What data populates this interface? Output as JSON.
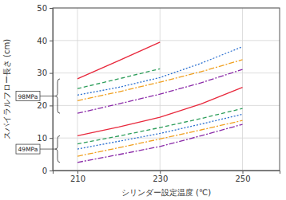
{
  "chart_data": {
    "type": "line",
    "x_label": "シリンダー設定温度 (℃)",
    "y_label": "スパイラルフロー長さ (cm)",
    "x": [
      210,
      220,
      230,
      240,
      250
    ],
    "xlim": [
      204,
      259
    ],
    "xticks": [
      210,
      230,
      250
    ],
    "ylim": [
      0,
      50
    ],
    "yticks": [
      0,
      10,
      20,
      30,
      40,
      50
    ],
    "grid": true,
    "annotations": [
      "98MPa",
      "49MPa"
    ],
    "series": [
      {
        "color": "#e8283c",
        "line_style": "solid",
        "values": [
          28.2,
          33.8,
          39.5,
          null,
          null
        ]
      },
      {
        "color": "#2e9e5b",
        "line_style": "dashed",
        "values": [
          25.2,
          28.2,
          31.3,
          null,
          null
        ]
      },
      {
        "color": "#2a6fd0",
        "line_style": "dotted",
        "values": [
          23.2,
          25.6,
          28.6,
          33.0,
          38.1
        ]
      },
      {
        "color": "#f0a020",
        "line_style": "dashdot",
        "values": [
          21.5,
          24.2,
          27.2,
          30.4,
          34.1
        ]
      },
      {
        "color": "#8a2aa8",
        "line_style": "dashdot",
        "values": [
          17.6,
          20.5,
          23.5,
          27.0,
          31.1
        ]
      },
      {
        "color": "#e8283c",
        "line_style": "solid",
        "values": [
          10.7,
          13.4,
          16.4,
          20.5,
          25.6
        ]
      },
      {
        "color": "#2e9e5b",
        "line_style": "dashed",
        "values": [
          8.2,
          10.6,
          13.2,
          16.0,
          19.1
        ]
      },
      {
        "color": "#2a6fd0",
        "line_style": "dotted",
        "values": [
          6.6,
          9.0,
          11.4,
          14.3,
          17.3
        ]
      },
      {
        "color": "#f0a020",
        "line_style": "dashdot",
        "values": [
          4.4,
          7.0,
          9.7,
          12.5,
          15.4
        ]
      },
      {
        "color": "#8a2aa8",
        "line_style": "dashdot",
        "values": [
          2.5,
          4.9,
          7.4,
          10.7,
          14.2
        ]
      }
    ]
  }
}
